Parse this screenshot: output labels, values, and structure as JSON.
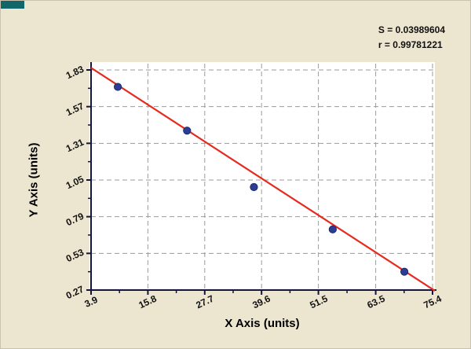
{
  "stats": {
    "s": "S = 0.03989604",
    "r": "r = 0.99781221"
  },
  "chart_data": {
    "type": "scatter",
    "title": "",
    "xlabel": "X Axis (units)",
    "ylabel": "Y Axis (units)",
    "xlim": [
      3.9,
      75.4
    ],
    "ylim": [
      0.27,
      1.83
    ],
    "xtick_labels": [
      "3.9",
      "15.8",
      "27.7",
      "39.6",
      "51.5",
      "63.5",
      "75.4"
    ],
    "ytick_labels": [
      "1.83",
      "1.57",
      "1.31",
      "1.05",
      "0.79",
      "0.53",
      "0.27"
    ],
    "grid": "dashed",
    "legend": "none",
    "points": [
      [
        9.5,
        1.71
      ],
      [
        24.0,
        1.4
      ],
      [
        38.0,
        1.0
      ],
      [
        54.5,
        0.7
      ],
      [
        69.5,
        0.4
      ]
    ],
    "fit_line": {
      "x1": 3.9,
      "y1": 1.845,
      "x2": 75.9,
      "y2": 0.265
    },
    "colors": {
      "point": "#2d3d94",
      "point_stroke": "#1e2a6e",
      "line": "#e62b1e",
      "grid": "#9b9b9b",
      "background": "#ece6d0",
      "plot_background": "#ffffff",
      "axis": "#14143c",
      "accent_corner": "#11666a"
    }
  }
}
